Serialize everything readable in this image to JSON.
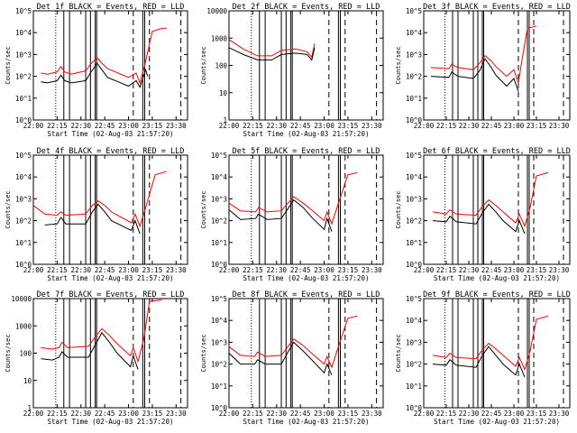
{
  "figure": {
    "background": "#ffffff",
    "events_color": "#000000",
    "lld_color": "#ff0000"
  },
  "chart_data": [
    {
      "type": "line",
      "title": "Det 1f BLACK = Events, RED = LLD",
      "xlabel": "Start Time (02-Aug-03 21:57:20)",
      "ylabel": "Counts/sec",
      "ymin_exp": 0,
      "ymax_exp": 5,
      "ytick_labels": [
        "10^0",
        "10^1",
        "10^2",
        "10^3",
        "10^4",
        "10^5"
      ],
      "xticks": [
        "22:00",
        "22:15",
        "22:30",
        "22:45",
        "23:00",
        "23:15",
        "23:30"
      ],
      "xlim": [
        22.0,
        23.62
      ],
      "events": [
        [
          22.08,
          1.75
        ],
        [
          22.15,
          1.7
        ],
        [
          22.25,
          1.8
        ],
        [
          22.29,
          2.05
        ],
        [
          22.33,
          1.8
        ],
        [
          22.4,
          1.7
        ],
        [
          22.55,
          1.8
        ],
        [
          22.6,
          2.15
        ],
        [
          22.67,
          2.6
        ],
        [
          22.72,
          2.3
        ],
        [
          22.78,
          1.95
        ],
        [
          23.0,
          1.55
        ],
        [
          23.08,
          1.8
        ],
        [
          23.12,
          1.5
        ],
        [
          23.18,
          2.3
        ],
        [
          23.2,
          2.0
        ]
      ],
      "lld": [
        [
          22.08,
          2.15
        ],
        [
          22.15,
          2.1
        ],
        [
          22.25,
          2.2
        ],
        [
          22.29,
          2.45
        ],
        [
          22.33,
          2.2
        ],
        [
          22.4,
          2.1
        ],
        [
          22.55,
          2.25
        ],
        [
          22.6,
          2.55
        ],
        [
          22.67,
          2.85
        ],
        [
          22.72,
          2.6
        ],
        [
          22.78,
          2.35
        ],
        [
          23.0,
          1.95
        ],
        [
          23.08,
          2.15
        ],
        [
          23.12,
          1.7
        ],
        [
          23.17,
          2.5
        ],
        [
          23.25,
          4.05
        ],
        [
          23.35,
          4.2
        ],
        [
          23.4,
          4.2
        ]
      ]
    },
    {
      "type": "line",
      "title": "Det 2f BLACK = Events, RED = LLD",
      "xlabel": "Start Time (02-Aug-03 21:57:20)",
      "ylabel": "Counts/sec",
      "ymin_exp": 0,
      "ymax_exp": 4,
      "ytick_labels": [
        "1",
        "10",
        "100",
        "1000",
        "10000"
      ],
      "xticks": [
        "22:00",
        "22:15",
        "22:30",
        "22:45",
        "23:00",
        "23:15",
        "23:30"
      ],
      "xlim": [
        22.0,
        23.62
      ],
      "events": [
        [
          22.0,
          2.65
        ],
        [
          22.15,
          2.4
        ],
        [
          22.3,
          2.2
        ],
        [
          22.45,
          2.2
        ],
        [
          22.55,
          2.4
        ],
        [
          22.7,
          2.45
        ],
        [
          22.82,
          2.4
        ],
        [
          22.87,
          2.2
        ],
        [
          22.9,
          2.65
        ]
      ],
      "lld": [
        [
          22.0,
          2.95
        ],
        [
          22.15,
          2.6
        ],
        [
          22.3,
          2.35
        ],
        [
          22.45,
          2.35
        ],
        [
          22.55,
          2.55
        ],
        [
          22.7,
          2.6
        ],
        [
          22.82,
          2.5
        ],
        [
          22.87,
          2.3
        ],
        [
          22.9,
          2.8
        ]
      ]
    },
    {
      "type": "line",
      "title": "Det 3f BLACK = Events, RED = LLD",
      "xlabel": "",
      "ylabel": "Counts/sec",
      "ymin_exp": 0,
      "ymax_exp": 5,
      "ytick_labels": [
        "10^0",
        "10^1",
        "10^2",
        "10^3",
        "10^4",
        "10^5"
      ],
      "xticks": [
        "22:00",
        "22:15",
        "22:30",
        "22:45",
        "23:00",
        "23:15",
        "23:30"
      ],
      "xlim": [
        22.0,
        23.62
      ],
      "events": [
        [
          22.08,
          2.0
        ],
        [
          22.28,
          1.95
        ],
        [
          22.31,
          2.2
        ],
        [
          22.38,
          2.0
        ],
        [
          22.55,
          1.9
        ],
        [
          22.62,
          2.25
        ],
        [
          22.68,
          2.8
        ],
        [
          22.75,
          2.4
        ],
        [
          22.8,
          2.05
        ],
        [
          22.92,
          1.55
        ],
        [
          23.0,
          1.9
        ],
        [
          23.05,
          1.3
        ]
      ],
      "lld": [
        [
          22.08,
          2.4
        ],
        [
          22.28,
          2.35
        ],
        [
          22.31,
          2.55
        ],
        [
          22.38,
          2.4
        ],
        [
          22.55,
          2.3
        ],
        [
          22.62,
          2.6
        ],
        [
          22.68,
          2.95
        ],
        [
          22.75,
          2.7
        ],
        [
          22.8,
          2.45
        ],
        [
          22.92,
          2.0
        ],
        [
          23.0,
          2.3
        ],
        [
          23.05,
          1.7
        ],
        [
          23.08,
          2.5
        ],
        [
          23.15,
          4.2
        ],
        [
          23.25,
          4.3
        ]
      ]
    },
    {
      "type": "line",
      "title": "Det 4f BLACK = Events, RED = LLD",
      "xlabel": "Start Time (02-Aug-03 21:57:20)",
      "ylabel": "Counts/sec",
      "ymin_exp": 0,
      "ymax_exp": 5,
      "ytick_labels": [
        "10^0",
        "10^1",
        "10^2",
        "10^3",
        "10^4",
        "10^5"
      ],
      "xticks": [
        "22:00",
        "22:15",
        "22:30",
        "22:45",
        "23:00",
        "23:15",
        "23:30"
      ],
      "xlim": [
        22.0,
        23.62
      ],
      "events": [
        [
          22.12,
          1.8
        ],
        [
          22.25,
          1.85
        ],
        [
          22.29,
          2.15
        ],
        [
          22.34,
          1.85
        ],
        [
          22.55,
          1.85
        ],
        [
          22.62,
          2.4
        ],
        [
          22.68,
          2.75
        ],
        [
          22.75,
          2.4
        ],
        [
          22.82,
          2.0
        ],
        [
          23.03,
          1.55
        ],
        [
          23.07,
          2.0
        ],
        [
          23.12,
          1.4
        ]
      ],
      "lld": [
        [
          22.0,
          2.7
        ],
        [
          22.12,
          2.3
        ],
        [
          22.25,
          2.25
        ],
        [
          22.29,
          2.4
        ],
        [
          22.34,
          2.25
        ],
        [
          22.55,
          2.3
        ],
        [
          22.62,
          2.7
        ],
        [
          22.68,
          2.9
        ],
        [
          22.75,
          2.7
        ],
        [
          22.82,
          2.4
        ],
        [
          23.03,
          1.9
        ],
        [
          23.07,
          2.3
        ],
        [
          23.12,
          1.75
        ],
        [
          23.18,
          2.6
        ],
        [
          23.28,
          4.1
        ],
        [
          23.4,
          4.25
        ]
      ]
    },
    {
      "type": "line",
      "title": "Det 5f BLACK = Events, RED = LLD",
      "xlabel": "Start Time (02-Aug-03 21:57:20)",
      "ylabel": "Counts/sec",
      "ymin_exp": 0,
      "ymax_exp": 5,
      "ytick_labels": [
        "10^0",
        "10^1",
        "10^2",
        "10^3",
        "10^4",
        "10^5"
      ],
      "xticks": [
        "22:00",
        "22:15",
        "22:30",
        "22:45",
        "23:00",
        "23:15",
        "23:30"
      ],
      "xlim": [
        22.0,
        23.62
      ],
      "events": [
        [
          22.0,
          2.5
        ],
        [
          22.12,
          2.05
        ],
        [
          22.28,
          2.1
        ],
        [
          22.31,
          2.3
        ],
        [
          22.4,
          2.05
        ],
        [
          22.55,
          2.1
        ],
        [
          22.62,
          2.55
        ],
        [
          22.68,
          2.95
        ],
        [
          22.78,
          2.6
        ],
        [
          22.88,
          2.1
        ],
        [
          23.0,
          1.6
        ],
        [
          23.03,
          2.1
        ],
        [
          23.08,
          1.5
        ]
      ],
      "lld": [
        [
          22.0,
          2.8
        ],
        [
          22.12,
          2.45
        ],
        [
          22.28,
          2.4
        ],
        [
          22.31,
          2.6
        ],
        [
          22.4,
          2.4
        ],
        [
          22.55,
          2.45
        ],
        [
          22.62,
          2.8
        ],
        [
          22.68,
          3.1
        ],
        [
          22.78,
          2.8
        ],
        [
          22.88,
          2.45
        ],
        [
          23.0,
          2.0
        ],
        [
          23.03,
          2.4
        ],
        [
          23.08,
          1.85
        ],
        [
          23.15,
          2.8
        ],
        [
          23.25,
          4.1
        ],
        [
          23.35,
          4.2
        ]
      ]
    },
    {
      "type": "line",
      "title": "Det 6f BLACK = Events, RED = LLD",
      "xlabel": "Start Time (02-Aug-03 21:57:20)",
      "ylabel": "Counts/sec",
      "ymin_exp": 0,
      "ymax_exp": 5,
      "ytick_labels": [
        "10^0",
        "10^1",
        "10^2",
        "10^3",
        "10^4",
        "10^5"
      ],
      "xticks": [
        "22:00",
        "22:15",
        "22:30",
        "22:45",
        "23:00",
        "23:15",
        "23:30"
      ],
      "xlim": [
        22.0,
        23.62
      ],
      "events": [
        [
          22.1,
          2.0
        ],
        [
          22.25,
          1.95
        ],
        [
          22.29,
          2.2
        ],
        [
          22.36,
          1.95
        ],
        [
          22.58,
          1.85
        ],
        [
          22.65,
          2.35
        ],
        [
          22.72,
          2.75
        ],
        [
          22.8,
          2.4
        ],
        [
          22.88,
          2.0
        ],
        [
          23.02,
          1.5
        ],
        [
          23.06,
          2.0
        ],
        [
          23.12,
          1.4
        ]
      ],
      "lld": [
        [
          22.1,
          2.4
        ],
        [
          22.25,
          2.3
        ],
        [
          22.29,
          2.5
        ],
        [
          22.36,
          2.3
        ],
        [
          22.58,
          2.25
        ],
        [
          22.65,
          2.65
        ],
        [
          22.72,
          2.95
        ],
        [
          22.8,
          2.7
        ],
        [
          22.88,
          2.4
        ],
        [
          23.02,
          1.9
        ],
        [
          23.06,
          2.3
        ],
        [
          23.12,
          1.75
        ],
        [
          23.18,
          2.6
        ],
        [
          23.25,
          4.05
        ],
        [
          23.38,
          4.2
        ]
      ]
    },
    {
      "type": "line",
      "title": "Det 7f BLACK = Events, RED = LLD",
      "xlabel": "Start Time (02-Aug-03 21:57:20)",
      "ylabel": "Counts/sec",
      "ymin_exp": 0,
      "ymax_exp": 4,
      "ytick_labels": [
        "1",
        "10",
        "100",
        "1000",
        "10000"
      ],
      "xticks": [
        "22:00",
        "22:15",
        "22:30",
        "22:45",
        "23:00",
        "23:15",
        "23:30"
      ],
      "xlim": [
        22.0,
        23.62
      ],
      "events": [
        [
          22.08,
          1.8
        ],
        [
          22.2,
          1.75
        ],
        [
          22.27,
          1.85
        ],
        [
          22.3,
          2.05
        ],
        [
          22.36,
          1.85
        ],
        [
          22.58,
          1.85
        ],
        [
          22.65,
          2.3
        ],
        [
          22.72,
          2.75
        ],
        [
          22.8,
          2.4
        ],
        [
          22.88,
          2.0
        ],
        [
          23.02,
          1.5
        ],
        [
          23.05,
          1.9
        ],
        [
          23.1,
          1.4
        ]
      ],
      "lld": [
        [
          22.08,
          2.2
        ],
        [
          22.2,
          2.15
        ],
        [
          22.27,
          2.2
        ],
        [
          22.3,
          2.4
        ],
        [
          22.36,
          2.2
        ],
        [
          22.58,
          2.25
        ],
        [
          22.65,
          2.6
        ],
        [
          22.72,
          2.9
        ],
        [
          22.8,
          2.65
        ],
        [
          22.88,
          2.35
        ],
        [
          23.02,
          1.9
        ],
        [
          23.05,
          2.2
        ],
        [
          23.1,
          1.7
        ],
        [
          23.16,
          2.5
        ],
        [
          23.22,
          3.9
        ],
        [
          23.35,
          3.95
        ]
      ]
    },
    {
      "type": "line",
      "title": "Det 8f BLACK = Events, RED = LLD",
      "xlabel": "Start Time (02-Aug-03 21:57:20)",
      "ylabel": "Counts/sec",
      "ymin_exp": 0,
      "ymax_exp": 5,
      "ytick_labels": [
        "10^0",
        "10^1",
        "10^2",
        "10^3",
        "10^4",
        "10^5"
      ],
      "xticks": [
        "22:00",
        "22:15",
        "22:30",
        "22:45",
        "23:00",
        "23:15",
        "23:30"
      ],
      "xlim": [
        22.0,
        23.62
      ],
      "events": [
        [
          22.0,
          2.5
        ],
        [
          22.12,
          2.0
        ],
        [
          22.27,
          2.0
        ],
        [
          22.3,
          2.2
        ],
        [
          22.38,
          2.0
        ],
        [
          22.55,
          2.0
        ],
        [
          22.62,
          2.55
        ],
        [
          22.68,
          3.0
        ],
        [
          22.78,
          2.6
        ],
        [
          22.88,
          2.15
        ],
        [
          23.0,
          1.6
        ],
        [
          23.03,
          2.0
        ],
        [
          23.08,
          1.5
        ]
      ],
      "lld": [
        [
          22.0,
          2.8
        ],
        [
          22.12,
          2.4
        ],
        [
          22.27,
          2.35
        ],
        [
          22.3,
          2.55
        ],
        [
          22.38,
          2.35
        ],
        [
          22.55,
          2.4
        ],
        [
          22.62,
          2.8
        ],
        [
          22.68,
          3.15
        ],
        [
          22.78,
          2.85
        ],
        [
          22.88,
          2.45
        ],
        [
          23.0,
          2.0
        ],
        [
          23.03,
          2.35
        ],
        [
          23.08,
          1.85
        ],
        [
          23.15,
          2.8
        ],
        [
          23.25,
          4.1
        ],
        [
          23.35,
          4.2
        ]
      ]
    },
    {
      "type": "line",
      "title": "Det 9f BLACK = Events, RED = LLD",
      "xlabel": "Start Time (02-Aug-03 21:57:20)",
      "ylabel": "Counts/sec",
      "ymin_exp": 0,
      "ymax_exp": 5,
      "ytick_labels": [
        "10^0",
        "10^1",
        "10^2",
        "10^3",
        "10^4",
        "10^5"
      ],
      "xticks": [
        "22:00",
        "22:15",
        "22:30",
        "22:45",
        "23:00",
        "23:15",
        "23:30"
      ],
      "xlim": [
        22.0,
        23.62
      ],
      "events": [
        [
          22.1,
          2.0
        ],
        [
          22.25,
          1.95
        ],
        [
          22.29,
          2.2
        ],
        [
          22.36,
          1.95
        ],
        [
          22.58,
          1.85
        ],
        [
          22.65,
          2.4
        ],
        [
          22.72,
          2.8
        ],
        [
          22.8,
          2.4
        ],
        [
          22.88,
          2.0
        ],
        [
          23.02,
          1.5
        ],
        [
          23.06,
          2.0
        ],
        [
          23.12,
          1.4
        ]
      ],
      "lld": [
        [
          22.1,
          2.4
        ],
        [
          22.25,
          2.3
        ],
        [
          22.29,
          2.5
        ],
        [
          22.36,
          2.3
        ],
        [
          22.58,
          2.25
        ],
        [
          22.65,
          2.65
        ],
        [
          22.72,
          2.95
        ],
        [
          22.8,
          2.7
        ],
        [
          22.88,
          2.4
        ],
        [
          23.02,
          1.9
        ],
        [
          23.06,
          2.3
        ],
        [
          23.12,
          1.75
        ],
        [
          23.18,
          2.6
        ],
        [
          23.25,
          4.05
        ],
        [
          23.38,
          4.2
        ]
      ]
    }
  ]
}
